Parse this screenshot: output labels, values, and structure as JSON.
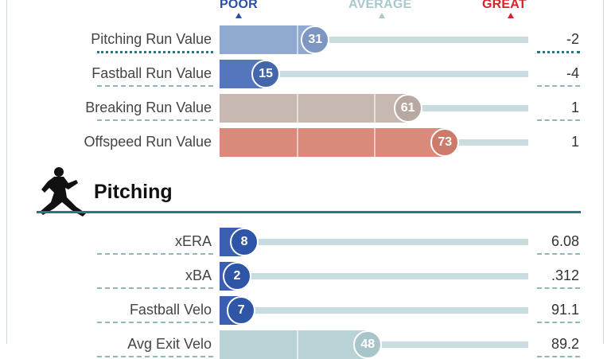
{
  "scale": {
    "poor": {
      "label": "POOR",
      "color": "#2c4fa3"
    },
    "average": {
      "label": "AVERAGE",
      "color": "#a9c9cc"
    },
    "great": {
      "label": "GREAT",
      "color": "#d4232b"
    }
  },
  "run_values": [
    {
      "label": "Pitching Run Value",
      "percentile": 31,
      "value": "-2",
      "bar_color": "#8fa9d0",
      "circle_color": "#7d97c2"
    },
    {
      "label": "Fastball Run Value",
      "percentile": 15,
      "value": "-4",
      "bar_color": "#5376bd",
      "circle_color": "#4466ad"
    },
    {
      "label": "Breaking Run Value",
      "percentile": 61,
      "value": "1",
      "bar_color": "#c8b8b2",
      "circle_color": "#b8a8a2"
    },
    {
      "label": "Offspeed Run Value",
      "percentile": 73,
      "value": "1",
      "bar_color": "#d98a7a",
      "circle_color": "#cc7a6a"
    }
  ],
  "pitching_section": {
    "title": "Pitching",
    "icon": "pitcher-silhouette-icon"
  },
  "pitching": [
    {
      "label": "xERA",
      "percentile": 8,
      "value": "6.08",
      "bar_color": "#3a5fb0",
      "circle_color": "#2f55a6"
    },
    {
      "label": "xBA",
      "percentile": 2,
      "value": ".312",
      "bar_color": "#3a5fb0",
      "circle_color": "#2f55a6"
    },
    {
      "label": "Fastball Velo",
      "percentile": 7,
      "value": "91.1",
      "bar_color": "#3a5fb0",
      "circle_color": "#2f55a6"
    },
    {
      "label": "Avg Exit Velo",
      "percentile": 48,
      "value": "89.2",
      "bar_color": "#b8d3d6",
      "circle_color": "#a8c6ca"
    }
  ]
}
